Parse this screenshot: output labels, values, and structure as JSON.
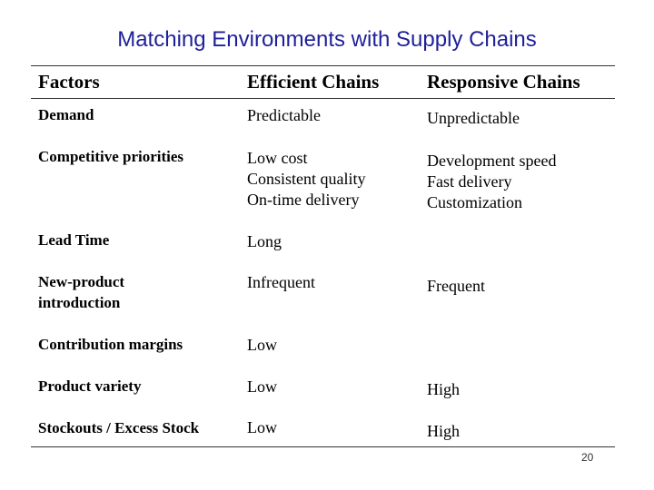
{
  "title": "Matching Environments with Supply Chains",
  "headers": {
    "factors": "Factors",
    "efficient": "Efficient Chains",
    "responsive": "Responsive Chains"
  },
  "rows": [
    {
      "factor": "Demand",
      "efficient": "Predictable",
      "responsive": "Unpredictable"
    },
    {
      "factor": "Competitive  priorities",
      "efficient": "Low cost\nConsistent quality\nOn-time delivery",
      "responsive": "Development speed\nFast delivery\nCustomization"
    },
    {
      "factor": "Lead Time",
      "efficient": "Long",
      "responsive": ""
    },
    {
      "factor": "New-product\n   introduction",
      "efficient": "Infrequent",
      "responsive": "Frequent"
    },
    {
      "factor": "Contribution  margins",
      "efficient": "Low",
      "responsive": ""
    },
    {
      "factor": "Product  variety",
      "efficient": "Low",
      "responsive": "High"
    },
    {
      "factor": "Stockouts / Excess Stock",
      "efficient": "Low",
      "responsive": "High"
    }
  ],
  "page_number": "20"
}
